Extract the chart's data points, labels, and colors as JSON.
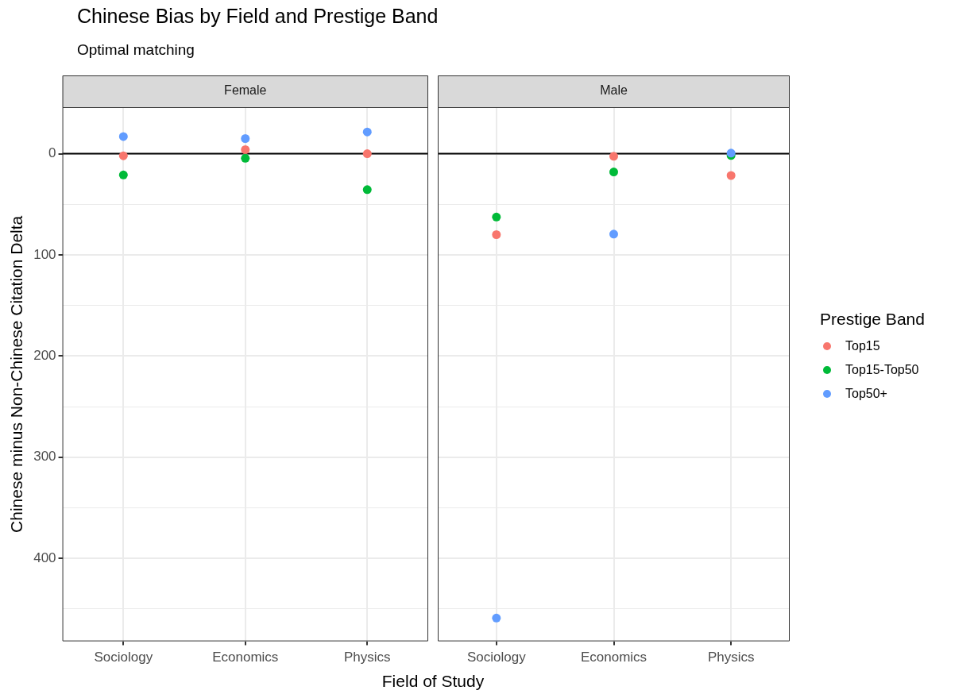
{
  "chart_data": [
    {
      "type": "scatter",
      "title": "Chinese Bias by Field and Prestige Band",
      "subtitle": "Optimal matching",
      "xlabel": "Field of Study",
      "ylabel": "Chinese minus Non-Chinese Citation Delta",
      "annotations": [
        "Female"
      ],
      "categories": [
        "Sociology",
        "Economics",
        "Physics"
      ],
      "series": [
        {
          "color": "#f8766d",
          "values": [
            2,
            -4,
            0
          ]
        },
        {
          "color": "#00ba38",
          "values": [
            21,
            4.5,
            35.5
          ]
        },
        {
          "color": "#619cff",
          "values": [
            -17,
            -15,
            -21.5
          ]
        }
      ],
      "ylim": [
        482,
        -46
      ],
      "yticks": [
        0,
        {
          "value": 50,
          "label": null
        },
        100,
        {
          "value": 150,
          "label": null
        },
        200,
        {
          "value": 250,
          "label": null
        },
        300,
        {
          "value": 350,
          "label": null
        },
        400,
        {
          "value": 450,
          "label": null
        }
      ],
      "ref_lines": [
        {
          "axis": "y",
          "value": 0,
          "label": null,
          "color": "#000000"
        }
      ],
      "grid": true,
      "marker": "circle"
    },
    {
      "type": "scatter",
      "annotations": [
        "Male"
      ],
      "legend_title": "Prestige Band",
      "categories": [
        "Sociology",
        "Economics",
        "Physics"
      ],
      "series": [
        {
          "name": "Top15",
          "color": "#f8766d",
          "values": [
            80,
            2.5,
            21.5
          ]
        },
        {
          "name": "Top15-Top50",
          "color": "#00ba38",
          "values": [
            62.6,
            18,
            1.7
          ]
        },
        {
          "name": "Top50+",
          "color": "#619cff",
          "values": [
            459,
            79.5,
            -0.6
          ]
        }
      ],
      "ylim": [
        482,
        -46
      ],
      "yticks": [
        0,
        {
          "value": 50,
          "label": null
        },
        100,
        {
          "value": 150,
          "label": null
        },
        200,
        {
          "value": 250,
          "label": null
        },
        300,
        {
          "value": 350,
          "label": null
        },
        400,
        {
          "value": 450,
          "label": null
        }
      ],
      "ref_lines": [
        {
          "axis": "y",
          "value": 0,
          "label": null,
          "color": "#000000"
        }
      ],
      "grid": true,
      "marker": "circle",
      "legend": "right",
      "tick_labels": "x"
    }
  ]
}
